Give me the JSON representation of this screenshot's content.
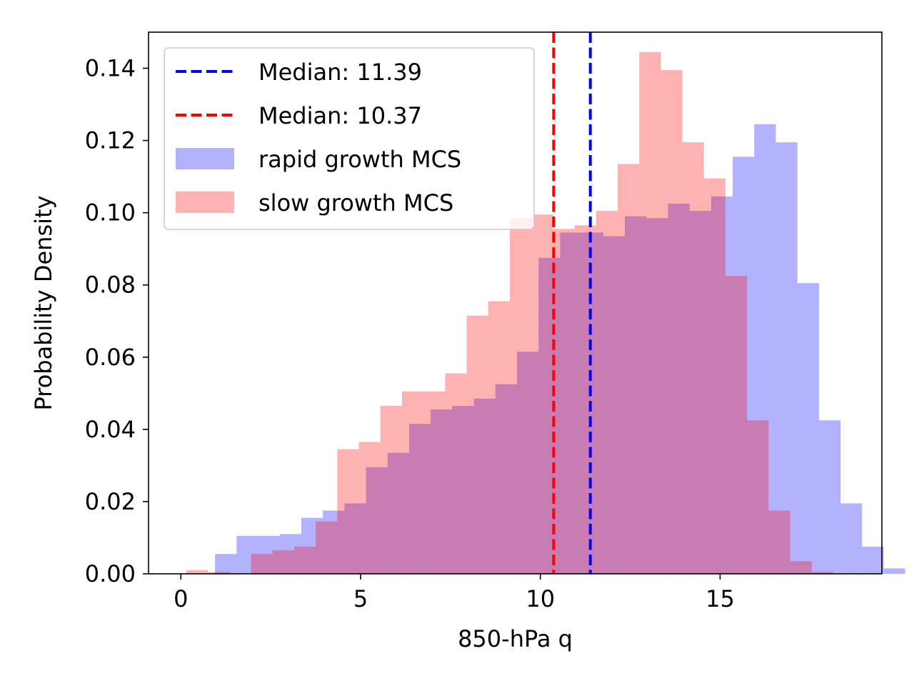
{
  "chart_data": {
    "type": "bar",
    "title": "",
    "xlabel": "850-hPa q",
    "ylabel": "Probability Density",
    "xlim": [
      -0.9,
      19.5
    ],
    "ylim": [
      0,
      0.15
    ],
    "xticks": [
      0,
      5,
      10,
      15
    ],
    "xtick_labels": [
      "0",
      "5",
      "10",
      "15"
    ],
    "yticks": [
      0.0,
      0.02,
      0.04,
      0.06,
      0.08,
      0.1,
      0.12,
      0.14
    ],
    "ytick_labels": [
      "0.00",
      "0.02",
      "0.04",
      "0.06",
      "0.08",
      "0.10",
      "0.12",
      "0.14"
    ],
    "grid": false,
    "legend_position": "top-left",
    "series": [
      {
        "name": "rapid growth MCS",
        "color": "#0000ff",
        "alpha": 0.3,
        "bin_start": 0.95,
        "bin_width": 0.6,
        "values": [
          0.0055,
          0.0105,
          0.0105,
          0.011,
          0.0155,
          0.0175,
          0.0195,
          0.0295,
          0.0335,
          0.0415,
          0.0455,
          0.0465,
          0.0485,
          0.0525,
          0.0615,
          0.0875,
          0.0945,
          0.0945,
          0.0935,
          0.099,
          0.0985,
          0.1025,
          0.1005,
          0.1045,
          0.1155,
          0.1245,
          0.1195,
          0.0805,
          0.0425,
          0.0195,
          0.0075,
          0.0015
        ]
      },
      {
        "name": "slow growth MCS",
        "color": "#ff0000",
        "alpha": 0.3,
        "bin_start": 0.15,
        "bin_width": 0.6,
        "values": [
          0.001,
          0.0005,
          0.0,
          0.0055,
          0.0065,
          0.0075,
          0.0145,
          0.0345,
          0.0365,
          0.0465,
          0.0505,
          0.0505,
          0.0555,
          0.0715,
          0.0755,
          0.0985,
          0.0995,
          0.0955,
          0.0965,
          0.1005,
          0.1135,
          0.1445,
          0.1395,
          0.1195,
          0.1095,
          0.0825,
          0.0425,
          0.0175,
          0.0035,
          0.0005
        ]
      }
    ],
    "medians": [
      {
        "label": "Median: 11.39",
        "value": 11.39,
        "color": "#0000ff"
      },
      {
        "label": "Median: 10.37",
        "value": 10.37,
        "color": "#ff0000"
      }
    ]
  }
}
